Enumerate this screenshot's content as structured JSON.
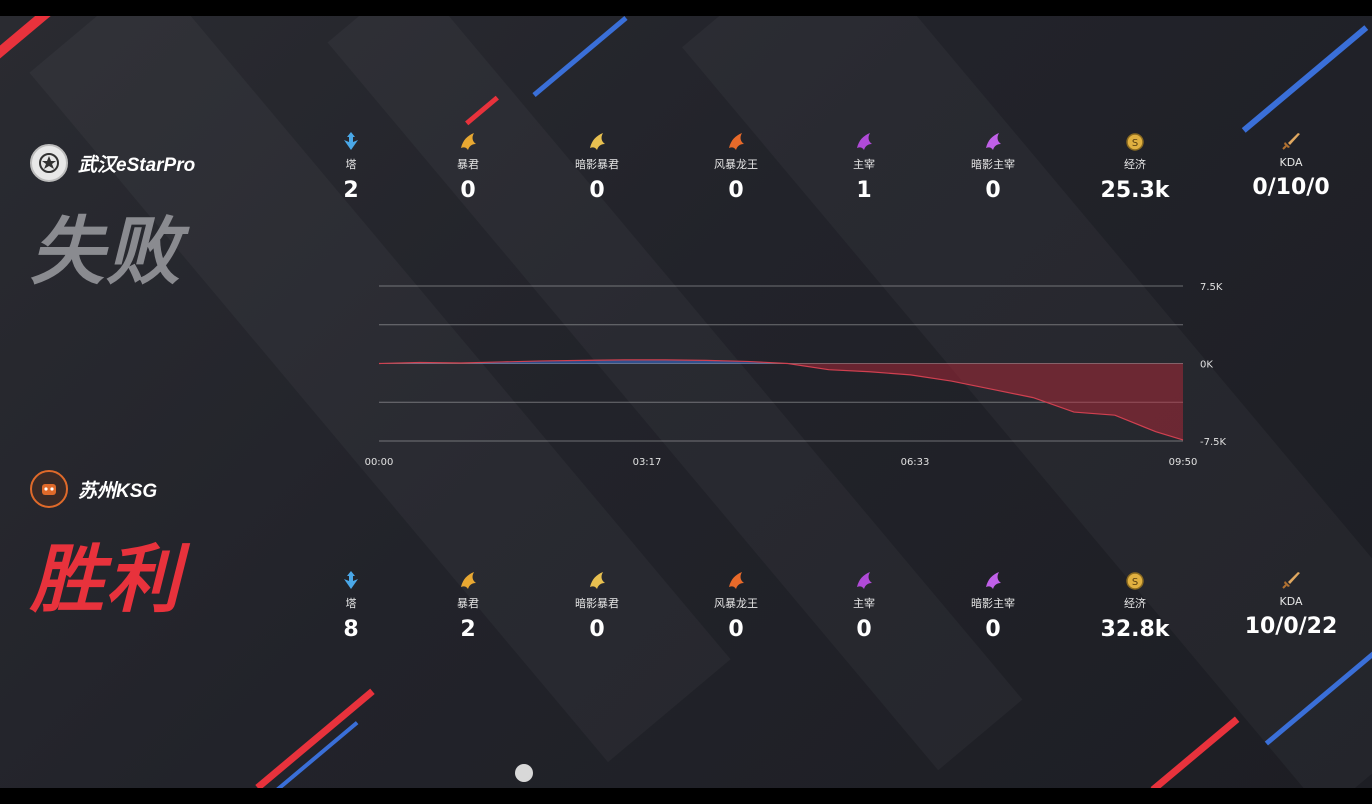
{
  "teams": {
    "top": {
      "name": "武汉eStarPro",
      "result": "失败",
      "result_color": "#8a8b90",
      "stats": [
        {
          "label": "塔",
          "value": "2",
          "icon": "tower-icon"
        },
        {
          "label": "暴君",
          "value": "0",
          "icon": "tyrant-icon"
        },
        {
          "label": "暗影暴君",
          "value": "0",
          "icon": "shadow-tyrant-icon"
        },
        {
          "label": "风暴龙王",
          "value": "0",
          "icon": "storm-dragon-icon"
        },
        {
          "label": "主宰",
          "value": "1",
          "icon": "overlord-icon"
        },
        {
          "label": "暗影主宰",
          "value": "0",
          "icon": "shadow-overlord-icon"
        },
        {
          "label": "经济",
          "value": "25.3k",
          "icon": "gold-coin-icon"
        },
        {
          "label": "KDA",
          "value": "0/10/0",
          "icon": "sword-icon"
        }
      ]
    },
    "bottom": {
      "name": "苏州KSG",
      "result": "胜利",
      "result_color": "#e8323c",
      "stats": [
        {
          "label": "塔",
          "value": "8",
          "icon": "tower-icon"
        },
        {
          "label": "暴君",
          "value": "2",
          "icon": "tyrant-icon"
        },
        {
          "label": "暗影暴君",
          "value": "0",
          "icon": "shadow-tyrant-icon"
        },
        {
          "label": "风暴龙王",
          "value": "0",
          "icon": "storm-dragon-icon"
        },
        {
          "label": "主宰",
          "value": "0",
          "icon": "overlord-icon"
        },
        {
          "label": "暗影主宰",
          "value": "0",
          "icon": "shadow-overlord-icon"
        },
        {
          "label": "经济",
          "value": "32.8k",
          "icon": "gold-coin-icon"
        },
        {
          "label": "KDA",
          "value": "10/0/22",
          "icon": "sword-icon"
        }
      ]
    }
  },
  "colors": {
    "blue_advantage": "#3a6fd8",
    "red_advantage": "#c0283a",
    "accent_red": "#e8323c",
    "accent_blue": "#3a6fd8"
  },
  "chart_data": {
    "type": "area",
    "title": "",
    "xlabel": "",
    "ylabel": "",
    "x_tick_labels": [
      "00:00",
      "03:17",
      "06:33",
      "09:50"
    ],
    "y_tick_labels": [
      "7.5K",
      "0K",
      "-7.5K"
    ],
    "xlim": [
      0,
      590
    ],
    "ylim": [
      -7500,
      7500
    ],
    "gridlines": [
      7500,
      3750,
      0,
      -3750,
      -7500
    ],
    "x": [
      0,
      30,
      60,
      90,
      120,
      150,
      180,
      210,
      240,
      270,
      300,
      330,
      360,
      390,
      420,
      450,
      480,
      510,
      540,
      570,
      590
    ],
    "values": [
      0,
      100,
      50,
      150,
      250,
      300,
      350,
      350,
      300,
      200,
      0,
      -600,
      -800,
      -1100,
      -1700,
      -2500,
      -3300,
      -4700,
      -5000,
      -6600,
      -7400
    ]
  }
}
